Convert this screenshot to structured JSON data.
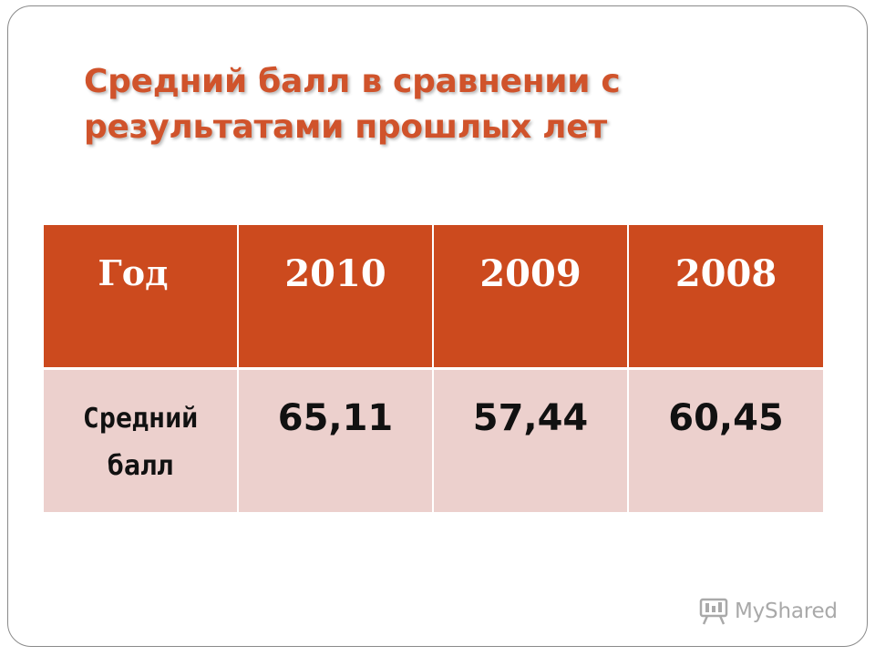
{
  "title": {
    "line1": "Средний балл в сравнении с",
    "line2": "результатами прошлых лет"
  },
  "table": {
    "header": [
      "Год",
      "2010",
      "2009",
      "2008"
    ],
    "row": {
      "label_line1": "Средний",
      "label_line2": "балл",
      "values": [
        "65,11",
        "57,44",
        "60,45"
      ]
    }
  },
  "watermark": {
    "text": "MyShared",
    "icon": "presentation-board-icon"
  },
  "colors": {
    "title": "#d0532b",
    "header_bg": "#cc4a1e",
    "row_bg": "#ecd0cd",
    "border": "#8a8a8a"
  }
}
